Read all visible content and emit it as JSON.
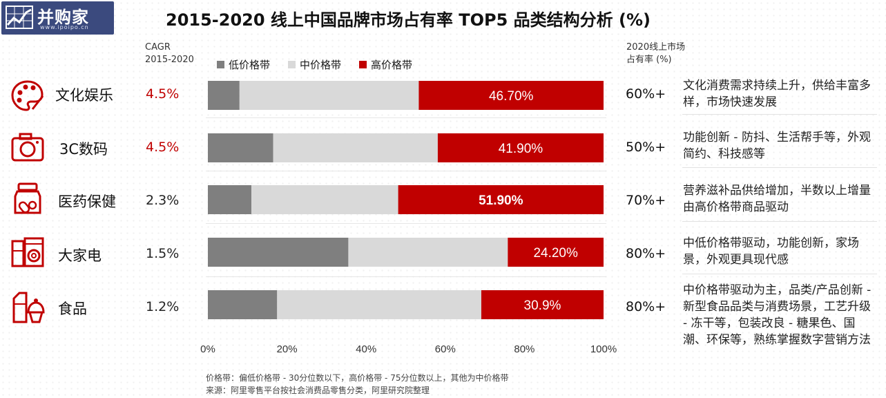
{
  "logo": {
    "text": "并购家",
    "url": "www.ipoipo.cn"
  },
  "title": "2015-2020 线上中国品牌市场占有率 TOP5 品类结构分析 (%)",
  "cagr_header": [
    "CAGR",
    "2015-2020"
  ],
  "share_header": [
    "2020线上市场",
    "占有率 (%)"
  ],
  "colors": {
    "low": "#7f7f7f",
    "mid": "#d9d9d9",
    "high": "#c00000",
    "accent_red": "#c00000"
  },
  "chart_data": {
    "type": "bar",
    "orientation": "horizontal",
    "stacked": true,
    "categories": [
      "文化娱乐",
      "3C数码",
      "医药保健",
      "大家电",
      "食品"
    ],
    "series": [
      {
        "name": "低价格带",
        "values": [
          8.0,
          16.5,
          11.0,
          35.5,
          17.5
        ]
      },
      {
        "name": "中价格带",
        "values": [
          45.3,
          41.6,
          37.1,
          40.3,
          51.6
        ]
      },
      {
        "name": "高价格带",
        "values": [
          46.7,
          41.9,
          51.9,
          24.2,
          30.9
        ]
      }
    ],
    "data_labels": [
      "46.70%",
      "41.90%",
      "51.90%",
      "24.20%",
      "30.9%"
    ],
    "xticks": [
      "0%",
      "20%",
      "40%",
      "60%",
      "80%",
      "100%"
    ],
    "xlim": [
      0,
      100
    ],
    "legend": "top"
  },
  "rows": [
    {
      "icon": "palette-icon",
      "label": "文化娱乐",
      "cagr": "4.5%",
      "cagr_color": "#c00000",
      "share": "60%+",
      "desc": "文化消费需求持续上升，供给丰富多样，市场快速发展"
    },
    {
      "icon": "camera-icon",
      "label": "3C数码",
      "cagr": "4.5%",
      "cagr_color": "#c00000",
      "share": "50%+",
      "desc": "功能创新 - 防抖、生活帮手等，外观简约、科技感等"
    },
    {
      "icon": "medicine-jar-icon",
      "label": "医药保健",
      "cagr": "2.3%",
      "cagr_color": "#222222",
      "share": "70%+",
      "desc": "营养滋补品供给增加，半数以上增量由高价格带商品驱动"
    },
    {
      "icon": "washing-machine-icon",
      "label": "大家电",
      "cagr": "1.5%",
      "cagr_color": "#222222",
      "share": "80%+",
      "desc": "中低价格带驱动，功能创新，家场景，外观更具现代感"
    },
    {
      "icon": "food-icon",
      "label": "食品",
      "cagr": "1.2%",
      "cagr_color": "#222222",
      "share": "80%+",
      "desc": "中价格带驱动为主，品类/产品创新 - 新型食品品类与消费场景，工艺升级 - 冻干等，包装改良 - 糖果色、国潮、环保等，熟练掌握数字营销方法"
    }
  ],
  "footnotes": [
    "价格带：偏低价格带 - 30分位数以下，高价格带 - 75分位数以上，其他为中价格带",
    "来源：阿里零售平台按社会消费品零售分类，阿里研究院整理"
  ]
}
